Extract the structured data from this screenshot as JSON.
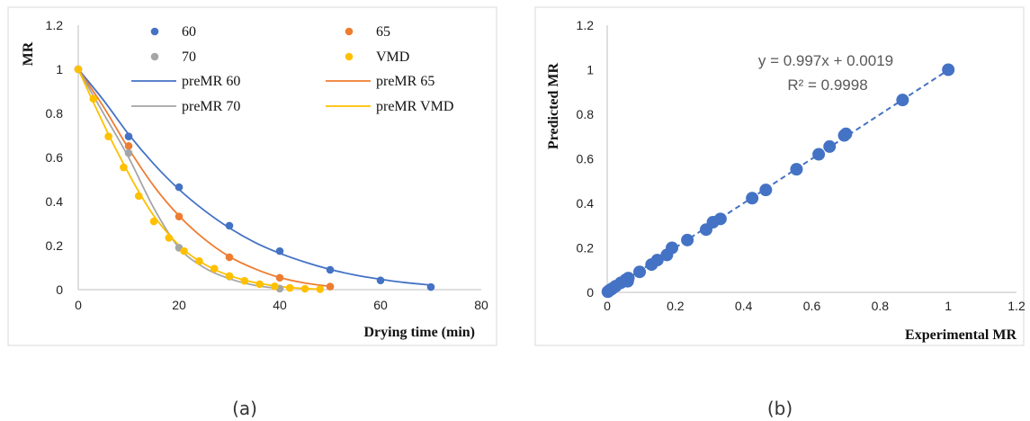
{
  "chart_data": [
    {
      "type": "scatter",
      "panel_label": "(a)",
      "title": "",
      "xlabel": "Drying time (min)",
      "ylabel": "MR",
      "xlim": [
        0,
        80
      ],
      "ylim": [
        0,
        1.2
      ],
      "xticks": [
        "0",
        "20",
        "40",
        "60",
        "80"
      ],
      "yticks": [
        "0",
        "0.2",
        "0.4",
        "0.6",
        "0.8",
        "1",
        "1.2"
      ],
      "grid": false,
      "legend_position": "top",
      "series": [
        {
          "name": "60",
          "kind": "points",
          "color": "#4472C4",
          "x": [
            0,
            10,
            20,
            30,
            40,
            50,
            60,
            70
          ],
          "y": [
            1,
            0.695,
            0.465,
            0.29,
            0.175,
            0.09,
            0.042,
            0.012
          ]
        },
        {
          "name": "65",
          "kind": "points",
          "color": "#ED7D31",
          "x": [
            0,
            10,
            20,
            30,
            40,
            50
          ],
          "y": [
            1,
            0.652,
            0.332,
            0.147,
            0.054,
            0.014
          ]
        },
        {
          "name": "70",
          "kind": "points",
          "color": "#A5A5A5",
          "x": [
            0,
            10,
            20,
            30,
            40
          ],
          "y": [
            1,
            0.62,
            0.19,
            0.06,
            0.005
          ]
        },
        {
          "name": "VMD",
          "kind": "points",
          "color": "#FFC000",
          "x": [
            0,
            3,
            6,
            9,
            12,
            15,
            18,
            21,
            24,
            27,
            30,
            33,
            36,
            39,
            42,
            45,
            48
          ],
          "y": [
            1,
            0.866,
            0.695,
            0.555,
            0.425,
            0.31,
            0.235,
            0.175,
            0.13,
            0.095,
            0.062,
            0.04,
            0.025,
            0.015,
            0.008,
            0.004,
            0.002
          ]
        },
        {
          "name": "preMR 60",
          "kind": "line",
          "color": "#4472C4",
          "x": [
            0,
            5,
            10,
            15,
            20,
            25,
            30,
            35,
            40,
            45,
            50,
            55,
            60,
            65,
            70
          ],
          "y": [
            1,
            0.86,
            0.705,
            0.57,
            0.455,
            0.36,
            0.28,
            0.215,
            0.165,
            0.125,
            0.092,
            0.066,
            0.047,
            0.032,
            0.021
          ]
        },
        {
          "name": "preMR 65",
          "kind": "line",
          "color": "#ED7D31",
          "x": [
            0,
            5,
            10,
            15,
            20,
            25,
            30,
            35,
            40,
            45,
            50
          ],
          "y": [
            1,
            0.83,
            0.64,
            0.47,
            0.335,
            0.23,
            0.15,
            0.095,
            0.055,
            0.03,
            0.015
          ]
        },
        {
          "name": "preMR 70",
          "kind": "line",
          "color": "#A5A5A5",
          "x": [
            0,
            5,
            10,
            15,
            20,
            25,
            30,
            35,
            40
          ],
          "y": [
            1,
            0.8,
            0.6,
            0.37,
            0.19,
            0.1,
            0.05,
            0.02,
            0.005
          ]
        },
        {
          "name": "preMR VMD",
          "kind": "line",
          "color": "#FFC000",
          "x": [
            0,
            3,
            6,
            9,
            12,
            15,
            18,
            21,
            24,
            27,
            30,
            33,
            36,
            39,
            42,
            45,
            48
          ],
          "y": [
            1,
            0.85,
            0.705,
            0.57,
            0.445,
            0.335,
            0.25,
            0.18,
            0.13,
            0.092,
            0.064,
            0.043,
            0.028,
            0.018,
            0.01,
            0.005,
            0.002
          ]
        }
      ]
    },
    {
      "type": "scatter",
      "panel_label": "(b)",
      "title": "",
      "xlabel": "Experimental MR",
      "ylabel": "Predicted MR",
      "xlim": [
        0,
        1.2
      ],
      "ylim": [
        0,
        1.2
      ],
      "xticks": [
        "0",
        "0.2",
        "0.4",
        "0.6",
        "0.8",
        "1",
        "1.2"
      ],
      "yticks": [
        "0",
        "0.2",
        "0.4",
        "0.6",
        "0.8",
        "1",
        "1.2"
      ],
      "grid": false,
      "legend_position": "none",
      "color": "#4472C4",
      "points": {
        "x": [
          0.002,
          0.005,
          0.01,
          0.015,
          0.025,
          0.04,
          0.054,
          0.06,
          0.062,
          0.095,
          0.13,
          0.147,
          0.175,
          0.19,
          0.235,
          0.29,
          0.31,
          0.332,
          0.425,
          0.465,
          0.555,
          0.62,
          0.652,
          0.695,
          0.7,
          0.866,
          1.0
        ],
        "y": [
          0.003,
          0.007,
          0.012,
          0.017,
          0.028,
          0.043,
          0.056,
          0.05,
          0.064,
          0.092,
          0.125,
          0.145,
          0.168,
          0.2,
          0.235,
          0.282,
          0.315,
          0.33,
          0.423,
          0.46,
          0.553,
          0.62,
          0.655,
          0.705,
          0.712,
          0.864,
          1.0
        ]
      },
      "trendline": {
        "slope": 0.997,
        "intercept": 0.0019,
        "x_range": [
          0,
          1
        ],
        "style": "dashed"
      },
      "annotation": {
        "equation": "y = 0.997x + 0.0019",
        "r2": "R² = 0.9998"
      }
    }
  ]
}
